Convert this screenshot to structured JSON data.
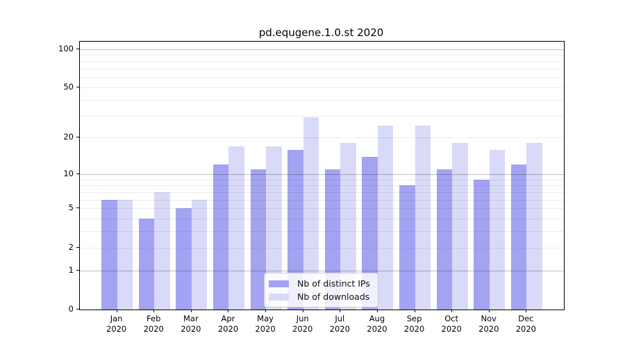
{
  "title": "pd.equgene.1.0.st 2020",
  "legend": {
    "items": [
      {
        "label": "Nb of distinct IPs",
        "color": "#a3a3f2"
      },
      {
        "label": "Nb of downloads",
        "color": "#d9d9f8"
      }
    ]
  },
  "chart_data": {
    "type": "bar",
    "title": "pd.equgene.1.0.st 2020",
    "scale": "log1p",
    "categories": [
      "Jan",
      "Feb",
      "Mar",
      "Apr",
      "May",
      "Jun",
      "Jul",
      "Aug",
      "Sep",
      "Oct",
      "Nov",
      "Dec"
    ],
    "year_label": "2020",
    "series": [
      {
        "name": "Nb of distinct IPs",
        "color": "#a3a3f2",
        "values": [
          6,
          4,
          5,
          12,
          11,
          16,
          11,
          14,
          8,
          11,
          9,
          12
        ]
      },
      {
        "name": "Nb of downloads",
        "color": "#d9d9f8",
        "values": [
          6,
          7,
          6,
          17,
          17,
          29,
          18,
          25,
          25,
          18,
          16,
          18
        ]
      }
    ],
    "y_ticks": [
      0,
      1,
      2,
      5,
      10,
      20,
      50,
      100
    ],
    "y_major_gridlines": [
      1,
      10,
      100
    ],
    "y_minor_gridlines": [
      2,
      3,
      4,
      5,
      6,
      7,
      8,
      9,
      20,
      30,
      40,
      50,
      60,
      70,
      80,
      90
    ],
    "ylim": [
      0,
      114
    ],
    "grid": true,
    "legend_position": "lower center",
    "xlabel": "",
    "ylabel": ""
  }
}
